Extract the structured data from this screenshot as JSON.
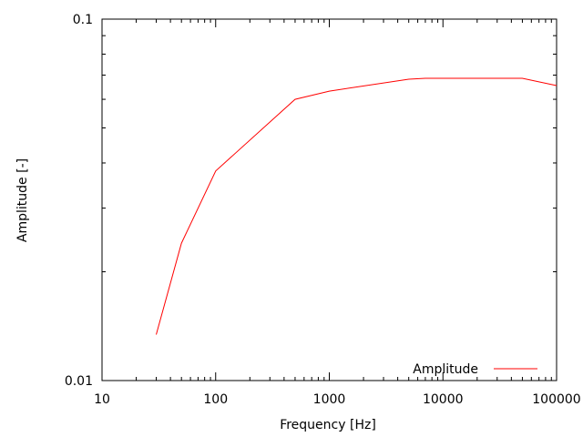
{
  "chart_data": {
    "type": "line",
    "title": "",
    "xlabel": "Frequency [Hz]",
    "ylabel": "Amplitude [-]",
    "xscale": "log",
    "yscale": "log",
    "xlim": [
      10,
      100000
    ],
    "ylim": [
      0.01,
      0.1
    ],
    "xticks": [
      "10",
      "100",
      "1000",
      "10000",
      "100000"
    ],
    "yticks": [
      "0.01",
      "0.1"
    ],
    "grid": false,
    "legend_position": "bottom-right",
    "series": [
      {
        "name": "Amplitude",
        "color": "#ff0000",
        "x": [
          30,
          50,
          100,
          500,
          1000,
          5000,
          7000,
          50000,
          100000
        ],
        "y": [
          0.0134,
          0.024,
          0.038,
          0.06,
          0.0632,
          0.0682,
          0.0686,
          0.0686,
          0.0655
        ]
      }
    ]
  }
}
